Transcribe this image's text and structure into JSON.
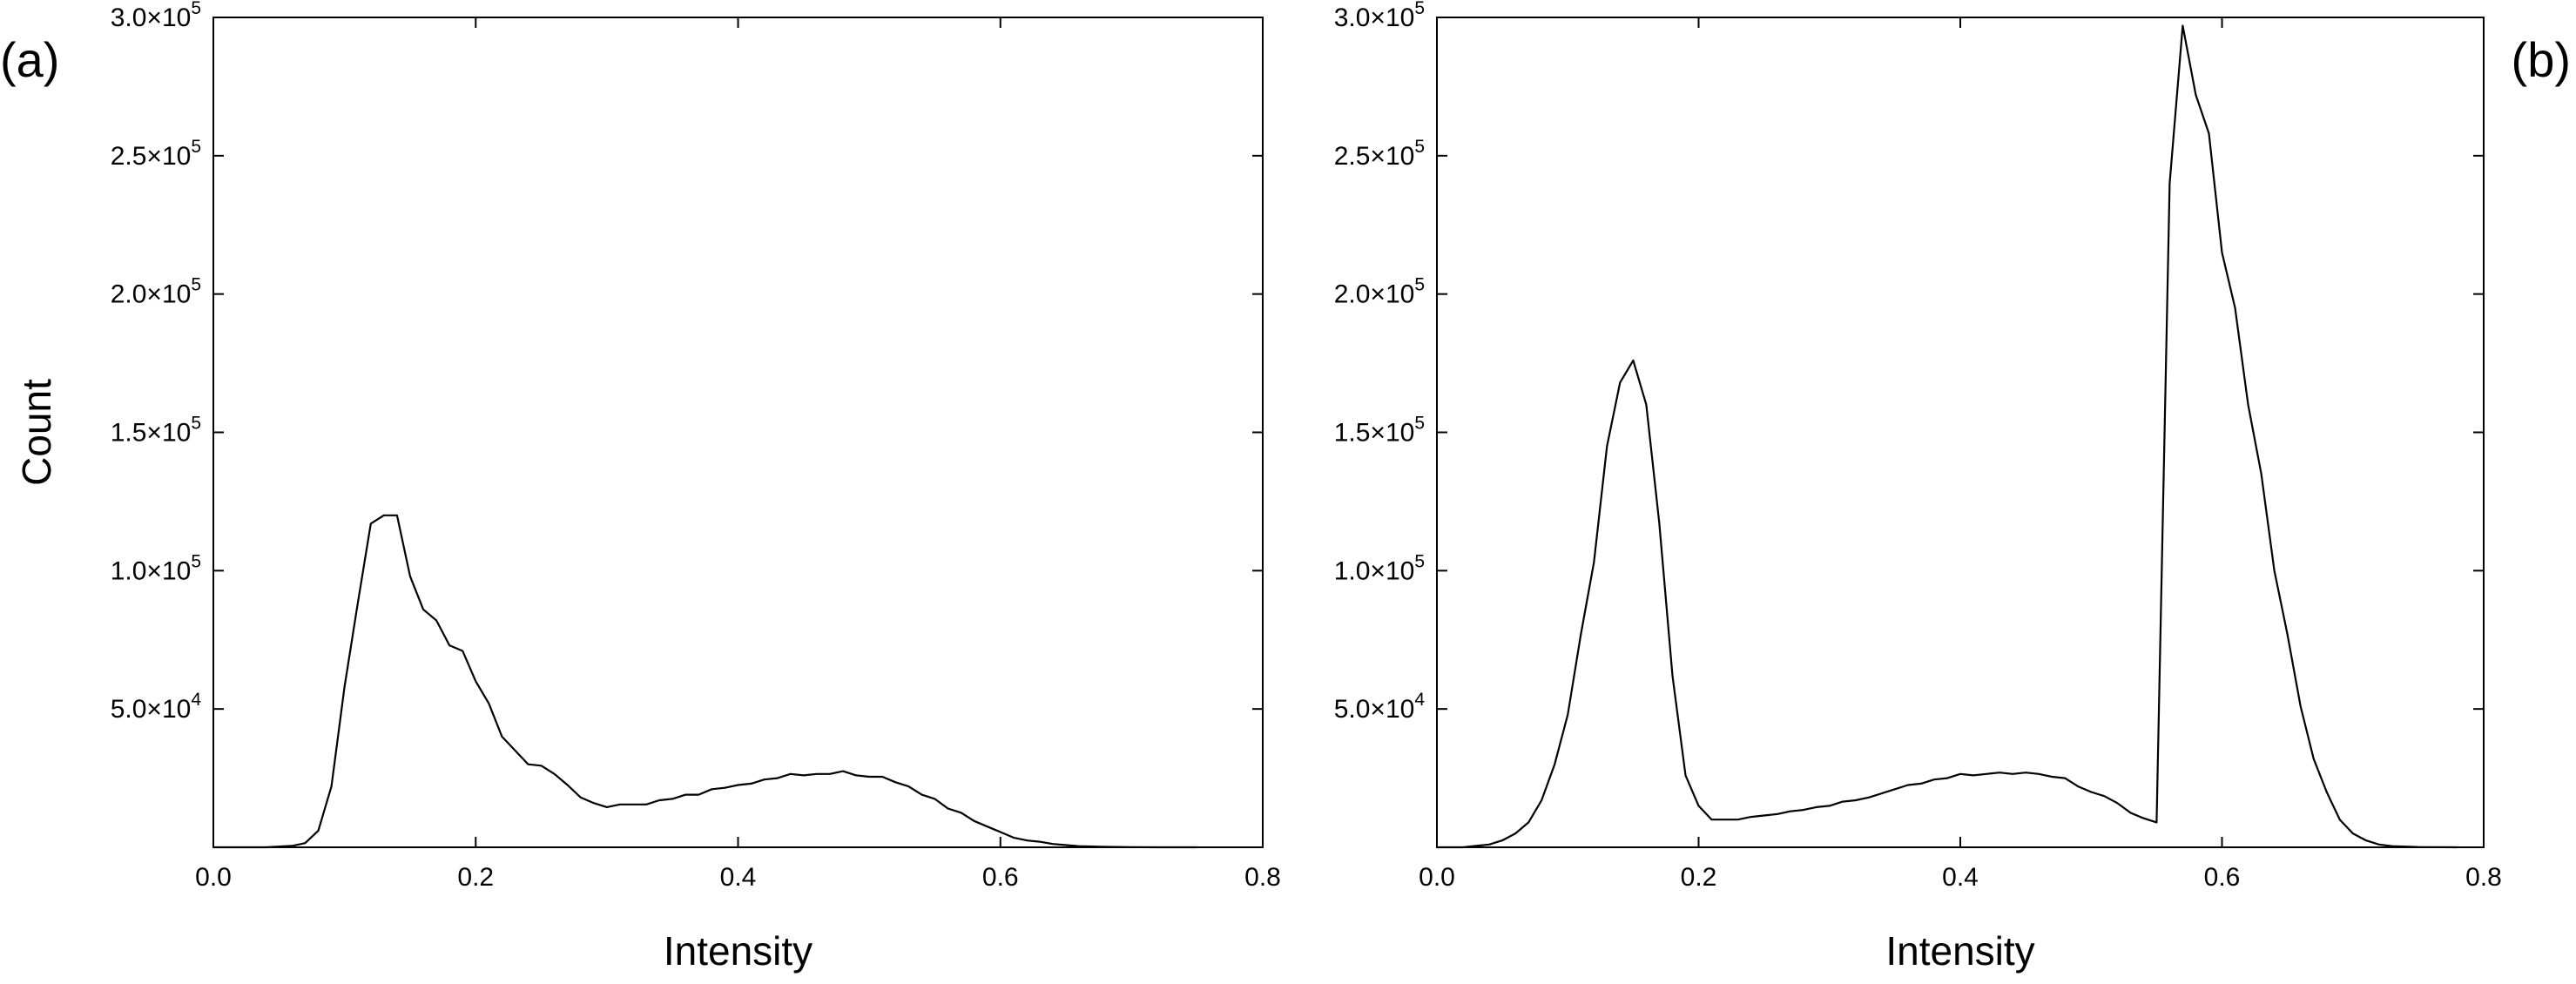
{
  "chart_data": [
    {
      "panel_label": "(a)",
      "type": "line",
      "xlabel": "Intensity",
      "ylabel": "Count",
      "xlim": [
        0,
        0.8
      ],
      "ylim": [
        0,
        300000
      ],
      "grid": false,
      "legend": "none",
      "x_ticks": [
        {
          "value": 0.0,
          "label": "0.0"
        },
        {
          "value": 0.2,
          "label": "0.2"
        },
        {
          "value": 0.4,
          "label": "0.4"
        },
        {
          "value": 0.6,
          "label": "0.6"
        },
        {
          "value": 0.8,
          "label": "0.8"
        }
      ],
      "y_ticks": [
        {
          "value": 50000,
          "mantissa": "5.0×10",
          "exponent": "4"
        },
        {
          "value": 100000,
          "mantissa": "1.0×10",
          "exponent": "5"
        },
        {
          "value": 150000,
          "mantissa": "1.5×10",
          "exponent": "5"
        },
        {
          "value": 200000,
          "mantissa": "2.0×10",
          "exponent": "5"
        },
        {
          "value": 250000,
          "mantissa": "2.5×10",
          "exponent": "5"
        },
        {
          "value": 300000,
          "mantissa": "3.0×10",
          "exponent": "5"
        }
      ],
      "series": [
        {
          "color": "#000000",
          "x": [
            0.0,
            0.02,
            0.04,
            0.06,
            0.07,
            0.08,
            0.09,
            0.1,
            0.11,
            0.12,
            0.13,
            0.14,
            0.15,
            0.16,
            0.17,
            0.18,
            0.19,
            0.2,
            0.21,
            0.22,
            0.23,
            0.24,
            0.25,
            0.26,
            0.27,
            0.28,
            0.29,
            0.3,
            0.31,
            0.32,
            0.33,
            0.34,
            0.35,
            0.36,
            0.37,
            0.38,
            0.39,
            0.4,
            0.41,
            0.42,
            0.43,
            0.44,
            0.45,
            0.46,
            0.47,
            0.48,
            0.49,
            0.5,
            0.51,
            0.52,
            0.53,
            0.54,
            0.55,
            0.56,
            0.57,
            0.58,
            0.59,
            0.6,
            0.61,
            0.62,
            0.63,
            0.64,
            0.65,
            0.66,
            0.68,
            0.7,
            0.72,
            0.75
          ],
          "y": [
            0,
            0,
            0,
            500,
            1500,
            6000,
            22000,
            58000,
            88000,
            117000,
            120000,
            120000,
            98000,
            86000,
            82000,
            73000,
            71000,
            60000,
            52000,
            40000,
            35000,
            30000,
            29500,
            26500,
            22500,
            18000,
            16000,
            14500,
            15500,
            15500,
            15500,
            17000,
            17500,
            19000,
            19000,
            21000,
            21500,
            22500,
            23000,
            24500,
            25000,
            26500,
            26000,
            26500,
            26500,
            27500,
            26000,
            25500,
            25500,
            23500,
            22000,
            19000,
            17500,
            14000,
            12500,
            9500,
            7500,
            5500,
            3500,
            2500,
            2000,
            1200,
            800,
            400,
            150,
            50,
            0,
            0
          ]
        }
      ]
    },
    {
      "panel_label": "(b)",
      "type": "line",
      "xlabel": "Intensity",
      "ylabel": "",
      "xlim": [
        0,
        0.8
      ],
      "ylim": [
        0,
        300000
      ],
      "grid": false,
      "legend": "none",
      "x_ticks": [
        {
          "value": 0.0,
          "label": "0.0"
        },
        {
          "value": 0.2,
          "label": "0.2"
        },
        {
          "value": 0.4,
          "label": "0.4"
        },
        {
          "value": 0.6,
          "label": "0.6"
        },
        {
          "value": 0.8,
          "label": "0.8"
        }
      ],
      "y_ticks": [
        {
          "value": 50000,
          "mantissa": "5.0×10",
          "exponent": "4"
        },
        {
          "value": 100000,
          "mantissa": "1.0×10",
          "exponent": "5"
        },
        {
          "value": 150000,
          "mantissa": "1.5×10",
          "exponent": "5"
        },
        {
          "value": 200000,
          "mantissa": "2.0×10",
          "exponent": "5"
        },
        {
          "value": 250000,
          "mantissa": "2.5×10",
          "exponent": "5"
        },
        {
          "value": 300000,
          "mantissa": "3.0×10",
          "exponent": "5"
        }
      ],
      "series": [
        {
          "color": "#000000",
          "x": [
            0.0,
            0.02,
            0.03,
            0.04,
            0.05,
            0.06,
            0.07,
            0.08,
            0.09,
            0.1,
            0.11,
            0.12,
            0.13,
            0.14,
            0.15,
            0.16,
            0.17,
            0.18,
            0.19,
            0.2,
            0.21,
            0.22,
            0.23,
            0.24,
            0.25,
            0.26,
            0.27,
            0.28,
            0.29,
            0.3,
            0.31,
            0.32,
            0.33,
            0.34,
            0.35,
            0.36,
            0.37,
            0.38,
            0.39,
            0.4,
            0.41,
            0.42,
            0.43,
            0.44,
            0.45,
            0.46,
            0.47,
            0.48,
            0.49,
            0.5,
            0.51,
            0.52,
            0.53,
            0.54,
            0.55,
            0.56,
            0.57,
            0.58,
            0.59,
            0.6,
            0.61,
            0.62,
            0.63,
            0.64,
            0.65,
            0.66,
            0.67,
            0.68,
            0.69,
            0.7,
            0.71,
            0.72,
            0.73,
            0.75,
            0.78
          ],
          "y": [
            0,
            0,
            500,
            1000,
            2500,
            5000,
            9000,
            17000,
            30000,
            48000,
            77000,
            103000,
            145000,
            168000,
            176000,
            160000,
            117000,
            62000,
            26000,
            15000,
            10000,
            10000,
            10000,
            11000,
            11500,
            12000,
            13000,
            13500,
            14500,
            15000,
            16500,
            17000,
            18000,
            19500,
            21000,
            22500,
            23000,
            24500,
            25000,
            26500,
            26000,
            26500,
            27000,
            26500,
            27000,
            26500,
            25500,
            25000,
            22000,
            20000,
            18500,
            16000,
            12500,
            10500,
            9000,
            240000,
            297000,
            272000,
            258000,
            215000,
            195000,
            160000,
            135000,
            100000,
            77000,
            51000,
            32000,
            20000,
            10000,
            5000,
            2500,
            1000,
            400,
            100,
            0
          ]
        }
      ]
    }
  ]
}
